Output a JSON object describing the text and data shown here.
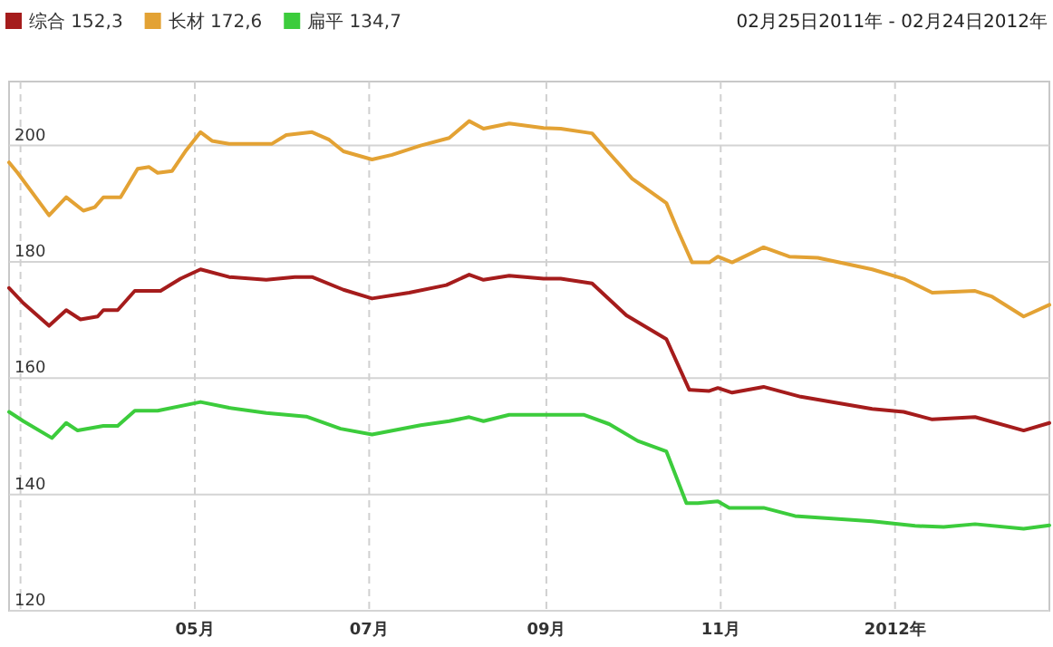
{
  "chart_data": {
    "type": "line",
    "subtitle": "02月25日2011年 - 02月24日2012年",
    "xlim": [
      "2011-02-25",
      "2012-02-24"
    ],
    "xticks": [
      {
        "value": "2011-03-01",
        "label": null
      },
      {
        "value": "2011-05-01",
        "label": "05月"
      },
      {
        "value": "2011-07-01",
        "label": "07月"
      },
      {
        "value": "2011-09-01",
        "label": "09月"
      },
      {
        "value": "2011-11-01",
        "label": "11月"
      },
      {
        "value": "2012-01-01",
        "label": "2012年"
      }
    ],
    "ylim": [
      120,
      211
    ],
    "yticks": [
      120,
      140,
      160,
      180,
      200
    ],
    "grid": true,
    "legend": "top left",
    "marker": "none",
    "line_style": "solid",
    "series": [
      {
        "name": "综合 152,3",
        "color": "#a51c1c",
        "x": [
          "2011-02-25",
          "2011-03-02",
          "2011-03-11",
          "2011-03-17",
          "2011-03-22",
          "2011-03-28",
          "2011-03-30",
          "2011-04-04",
          "2011-04-10",
          "2011-04-19",
          "2011-04-26",
          "2011-05-03",
          "2011-05-13",
          "2011-05-26",
          "2011-06-05",
          "2011-06-11",
          "2011-06-22",
          "2011-07-02",
          "2011-07-15",
          "2011-07-28",
          "2011-08-05",
          "2011-08-10",
          "2011-08-19",
          "2011-08-31",
          "2011-09-06",
          "2011-09-17",
          "2011-09-29",
          "2011-10-13",
          "2011-10-21",
          "2011-10-28",
          "2011-10-31",
          "2011-11-05",
          "2011-11-16",
          "2011-11-29",
          "2011-12-24",
          "2012-01-04",
          "2012-01-14",
          "2012-01-29",
          "2012-02-15",
          "2012-02-24"
        ],
        "values": [
          175.5,
          172.9,
          169.0,
          171.7,
          170.1,
          170.6,
          171.7,
          171.7,
          175.0,
          175.0,
          177.1,
          178.7,
          177.4,
          176.9,
          177.4,
          177.4,
          175.2,
          173.7,
          174.7,
          176.0,
          177.8,
          176.9,
          177.6,
          177.1,
          177.1,
          176.3,
          170.8,
          166.7,
          158.0,
          157.8,
          158.3,
          157.5,
          158.5,
          156.8,
          154.7,
          154.2,
          152.9,
          153.3,
          151.0,
          152.3
        ]
      },
      {
        "name": "长材 172,6",
        "color": "#e3a234",
        "x": [
          "2011-02-25",
          "2011-02-28",
          "2011-03-11",
          "2011-03-17",
          "2011-03-23",
          "2011-03-27",
          "2011-03-30",
          "2011-04-05",
          "2011-04-11",
          "2011-04-15",
          "2011-04-18",
          "2011-04-23",
          "2011-04-28",
          "2011-05-03",
          "2011-05-07",
          "2011-05-13",
          "2011-05-28",
          "2011-06-02",
          "2011-06-11",
          "2011-06-17",
          "2011-06-22",
          "2011-07-02",
          "2011-07-09",
          "2011-07-19",
          "2011-07-29",
          "2011-08-05",
          "2011-08-10",
          "2011-08-19",
          "2011-08-31",
          "2011-09-06",
          "2011-09-17",
          "2011-09-23",
          "2011-10-01",
          "2011-10-13",
          "2011-10-17",
          "2011-10-22",
          "2011-10-28",
          "2011-10-31",
          "2011-11-05",
          "2011-11-16",
          "2011-11-25",
          "2011-12-05",
          "2011-12-24",
          "2012-01-04",
          "2012-01-14",
          "2012-01-29",
          "2012-02-04",
          "2012-02-15",
          "2012-02-24"
        ],
        "values": [
          197.1,
          195.3,
          188.0,
          191.1,
          188.8,
          189.4,
          191.1,
          191.1,
          196.0,
          196.3,
          195.3,
          195.6,
          199.2,
          202.3,
          200.8,
          200.3,
          200.3,
          201.8,
          202.3,
          201.0,
          199.0,
          197.6,
          198.4,
          200.0,
          201.3,
          204.2,
          202.9,
          203.8,
          203.0,
          202.9,
          202.1,
          198.7,
          194.3,
          190.1,
          185.4,
          179.9,
          179.9,
          180.9,
          179.9,
          182.5,
          180.9,
          180.7,
          178.7,
          177.1,
          174.7,
          175.0,
          174.0,
          170.6,
          172.6
        ]
      },
      {
        "name": "扁平 134,7",
        "color": "#3ccc3c",
        "x": [
          "2011-02-25",
          "2011-03-02",
          "2011-03-12",
          "2011-03-17",
          "2011-03-21",
          "2011-03-30",
          "2011-04-04",
          "2011-04-10",
          "2011-04-18",
          "2011-05-03",
          "2011-05-13",
          "2011-05-26",
          "2011-06-09",
          "2011-06-21",
          "2011-07-02",
          "2011-07-19",
          "2011-07-29",
          "2011-08-05",
          "2011-08-10",
          "2011-08-19",
          "2011-08-31",
          "2011-09-14",
          "2011-09-23",
          "2011-10-03",
          "2011-10-13",
          "2011-10-20",
          "2011-10-24",
          "2011-10-31",
          "2011-11-04",
          "2011-11-16",
          "2011-11-27",
          "2011-12-24",
          "2012-01-08",
          "2012-01-18",
          "2012-01-29",
          "2012-02-15",
          "2012-02-24"
        ],
        "values": [
          154.2,
          152.6,
          149.7,
          152.3,
          151.0,
          151.8,
          151.8,
          154.4,
          154.4,
          155.9,
          154.9,
          154.0,
          153.4,
          151.3,
          150.3,
          151.9,
          152.6,
          153.3,
          152.6,
          153.7,
          153.7,
          153.7,
          152.1,
          149.2,
          147.4,
          138.5,
          138.5,
          138.8,
          137.7,
          137.7,
          136.3,
          135.4,
          134.6,
          134.4,
          134.9,
          134.1,
          134.7
        ]
      }
    ]
  }
}
